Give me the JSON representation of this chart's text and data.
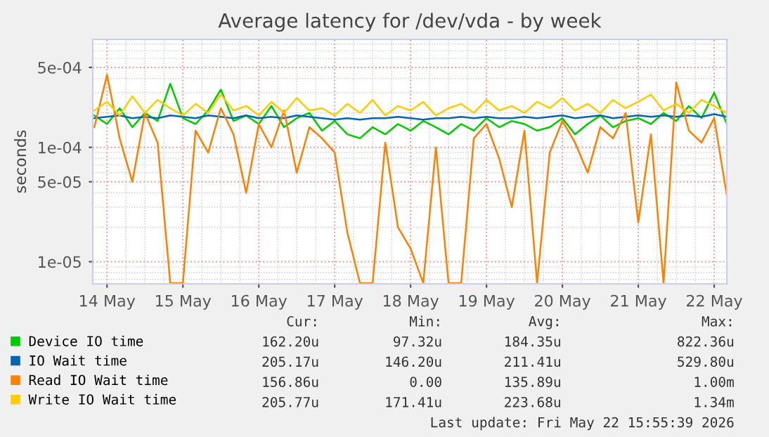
{
  "chart_data": {
    "type": "line",
    "title": "Average latency for /dev/vda - by week",
    "ylabel": "seconds",
    "x": [
      "2026-05-13T20:00",
      "2026-05-14T00:00",
      "2026-05-14T04:00",
      "2026-05-14T08:00",
      "2026-05-14T12:00",
      "2026-05-14T16:00",
      "2026-05-14T20:00",
      "2026-05-15T00:00",
      "2026-05-15T04:00",
      "2026-05-15T08:00",
      "2026-05-15T12:00",
      "2026-05-15T16:00",
      "2026-05-15T20:00",
      "2026-05-16T00:00",
      "2026-05-16T04:00",
      "2026-05-16T08:00",
      "2026-05-16T12:00",
      "2026-05-16T16:00",
      "2026-05-16T20:00",
      "2026-05-17T00:00",
      "2026-05-17T04:00",
      "2026-05-17T08:00",
      "2026-05-17T12:00",
      "2026-05-17T16:00",
      "2026-05-17T20:00",
      "2026-05-18T00:00",
      "2026-05-18T04:00",
      "2026-05-18T08:00",
      "2026-05-18T12:00",
      "2026-05-18T16:00",
      "2026-05-18T20:00",
      "2026-05-19T00:00",
      "2026-05-19T04:00",
      "2026-05-19T08:00",
      "2026-05-19T12:00",
      "2026-05-19T16:00",
      "2026-05-19T20:00",
      "2026-05-20T00:00",
      "2026-05-20T04:00",
      "2026-05-20T08:00",
      "2026-05-20T12:00",
      "2026-05-20T16:00",
      "2026-05-20T20:00",
      "2026-05-21T00:00",
      "2026-05-21T04:00",
      "2026-05-21T08:00",
      "2026-05-21T12:00",
      "2026-05-21T16:00",
      "2026-05-21T20:00",
      "2026-05-22T00:00",
      "2026-05-22T04:00"
    ],
    "series": [
      {
        "name": "Device IO time",
        "color": "#00cc00",
        "values": [
          0.00019,
          0.00016,
          0.00022,
          0.00015,
          0.0002,
          0.00017,
          0.00036,
          0.00018,
          0.00016,
          0.00021,
          0.00032,
          0.00017,
          0.00019,
          0.00016,
          0.00023,
          0.00015,
          0.00018,
          0.0002,
          0.00014,
          0.00017,
          0.00013,
          0.00012,
          0.00015,
          0.00013,
          0.00016,
          0.00014,
          0.00017,
          0.00015,
          0.00013,
          0.00016,
          0.00014,
          0.00018,
          0.00015,
          0.00017,
          0.00016,
          0.00014,
          0.00015,
          0.00018,
          0.00013,
          0.00016,
          0.00019,
          0.00015,
          0.00017,
          0.00018,
          0.00016,
          0.0002,
          0.00017,
          0.00023,
          0.00018,
          0.0003,
          0.00016
        ]
      },
      {
        "name": "IO Wait time",
        "color": "#0066b3",
        "values": [
          0.00018,
          0.000185,
          0.00019,
          0.00018,
          0.000185,
          0.00018,
          0.00019,
          0.000185,
          0.00018,
          0.00019,
          0.000185,
          0.00018,
          0.00019,
          0.00018,
          0.000185,
          0.00018,
          0.00019,
          0.000185,
          0.00018,
          0.000175,
          0.00018,
          0.000175,
          0.00018,
          0.00018,
          0.000185,
          0.00018,
          0.000175,
          0.00018,
          0.00018,
          0.000185,
          0.00018,
          0.000185,
          0.00018,
          0.00018,
          0.000185,
          0.00018,
          0.000185,
          0.00019,
          0.00018,
          0.000185,
          0.00019,
          0.00018,
          0.000185,
          0.00019,
          0.000185,
          0.00019,
          0.000185,
          0.00019,
          0.000185,
          0.000195,
          0.000185
        ]
      },
      {
        "name": "Read IO Wait time",
        "color": "#ff8000",
        "values": [
          0.00015,
          0.00043,
          0.00012,
          5e-05,
          0.0002,
          0.00011,
          6.5e-06,
          6.5e-06,
          0.00014,
          9e-05,
          0.00022,
          0.00013,
          4e-05,
          0.00016,
          0.0001,
          0.00021,
          6e-05,
          0.00015,
          0.00012,
          9e-05,
          1.8e-05,
          6.5e-06,
          6.5e-06,
          0.00011,
          2e-05,
          1.3e-05,
          6.5e-06,
          0.0001,
          6.5e-06,
          6.5e-06,
          0.00012,
          0.00016,
          8e-05,
          3e-05,
          0.00014,
          6.5e-06,
          9e-05,
          0.00017,
          0.00011,
          6e-05,
          0.00015,
          0.00012,
          0.0002,
          2.2e-05,
          0.00013,
          6.5e-06,
          0.00037,
          0.00014,
          0.00011,
          0.00018,
          3.8e-05
        ]
      },
      {
        "name": "Write IO Wait time",
        "color": "#ffcc00",
        "values": [
          0.00021,
          0.00025,
          0.00019,
          0.00028,
          0.0002,
          0.00026,
          0.00022,
          0.00019,
          0.00024,
          0.0002,
          0.00029,
          0.00021,
          0.00023,
          0.00019,
          0.00025,
          0.0002,
          0.00027,
          0.00021,
          0.00022,
          0.00019,
          0.00024,
          0.0002,
          0.00026,
          0.00019,
          0.00023,
          0.00021,
          0.00025,
          0.00019,
          0.00022,
          0.00024,
          0.0002,
          0.00026,
          0.00021,
          0.00023,
          0.0002,
          0.00025,
          0.00022,
          0.00027,
          0.00021,
          0.00024,
          0.0002,
          0.00026,
          0.00022,
          0.00025,
          0.00029,
          0.00021,
          0.00024,
          0.0002,
          0.00026,
          0.00023,
          0.0002
        ]
      }
    ],
    "log": "y",
    "xlim": [
      "2026-05-13T19:30",
      "2026-05-22T04:00"
    ],
    "xticks": [
      {
        "value": "2026-05-14",
        "label": "14 May"
      },
      {
        "value": "2026-05-15",
        "label": "15 May"
      },
      {
        "value": "2026-05-16",
        "label": "16 May"
      },
      {
        "value": "2026-05-17",
        "label": "17 May"
      },
      {
        "value": "2026-05-18",
        "label": "18 May"
      },
      {
        "value": "2026-05-19",
        "label": "19 May"
      },
      {
        "value": "2026-05-20",
        "label": "20 May"
      },
      {
        "value": "2026-05-21",
        "label": "21 May"
      },
      {
        "value": "2026-05-22",
        "label": "22 May"
      }
    ],
    "ylim": [
      6.4e-06,
      0.00088
    ],
    "yticks": [
      {
        "value": 1e-05,
        "label": "1e-05"
      },
      {
        "value": 5e-05,
        "label": "5e-05"
      },
      {
        "value": 0.0001,
        "label": "1e-04"
      },
      {
        "value": 0.0005,
        "label": "5e-04"
      }
    ],
    "grid": true,
    "legend": "bottom",
    "marker": "none",
    "line_style": "solid",
    "annotations": [
      "Cur:",
      "Min:",
      "Avg:",
      "Max:",
      "162.20u",
      "97.32u",
      "184.35u",
      "822.36u",
      "205.17u",
      "146.20u",
      "211.41u",
      "529.80u",
      "156.86u",
      "0.00",
      "135.89u",
      "1.00m",
      "205.77u",
      "171.41u",
      "223.68u",
      "1.34m",
      "Last update: Fri May 22 15:55:39 2026"
    ]
  }
}
